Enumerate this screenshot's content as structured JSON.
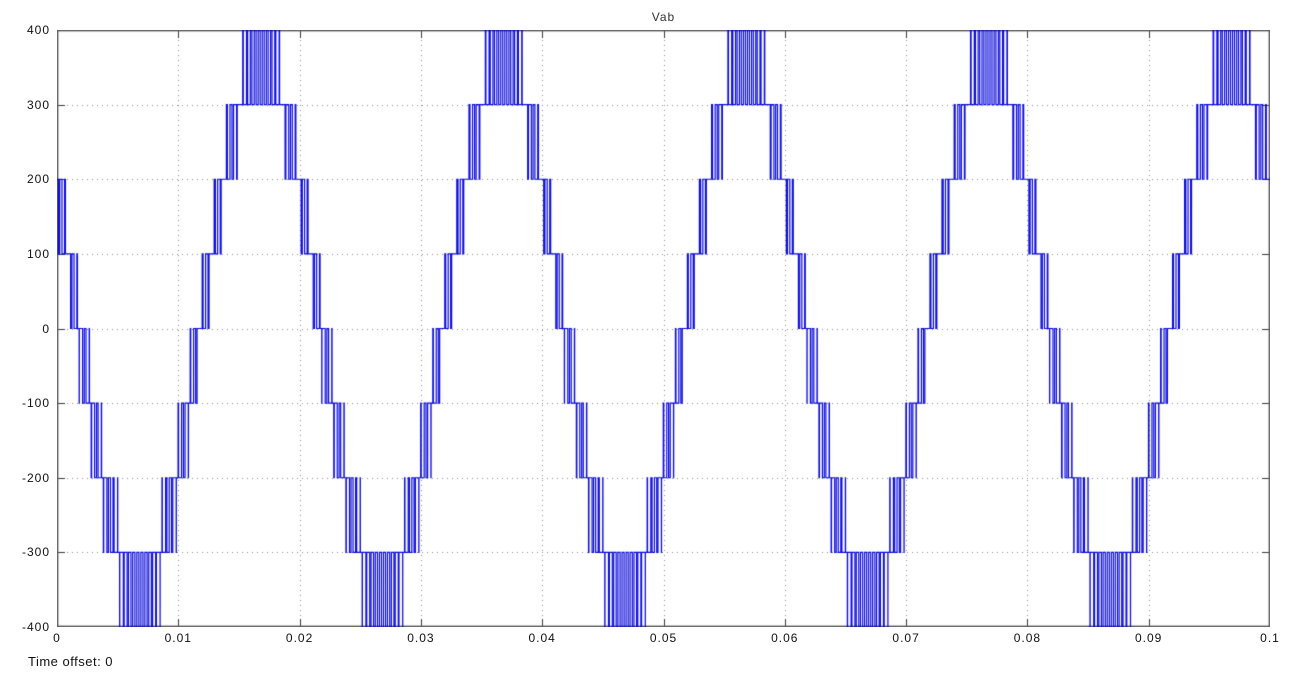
{
  "scope": {
    "time_offset_label": "Time offset: 0"
  },
  "colors": {
    "waveform": "#0b0bdc",
    "grid": "#909090",
    "axis_box": "#606060",
    "tick": "#3a3a3a",
    "text": "#111111",
    "background": "#ffffff"
  },
  "chart_data": {
    "type": "line",
    "title": "Vab",
    "xlabel": "",
    "ylabel": "",
    "xlim": [
      0,
      0.1
    ],
    "ylim": [
      -400,
      400
    ],
    "grid": true,
    "grid_style": "dotted",
    "legend": "none",
    "x_tick_values": [
      0,
      0.01,
      0.02,
      0.03,
      0.04,
      0.05,
      0.06,
      0.07,
      0.08,
      0.09,
      0.1
    ],
    "x_tick_labels": [
      "0",
      "0.01",
      "0.02",
      "0.03",
      "0.04",
      "0.05",
      "0.06",
      "0.07",
      "0.08",
      "0.09",
      "0.1"
    ],
    "y_tick_values": [
      -400,
      -300,
      -200,
      -100,
      0,
      100,
      200,
      300,
      400
    ],
    "y_tick_labels": [
      "-400",
      "-300",
      "-200",
      "-100",
      "0",
      "100",
      "200",
      "300",
      "400"
    ],
    "series": [
      {
        "name": "Vab",
        "kind": "multilevel_pwm",
        "description": "9-level inverter line-to-line voltage: staircase with level-shifted (phase-disposition) PWM switching between adjacent 100 V levels; dense 300-400 V bursts at each crest and -300 to -400 V bursts at each trough",
        "level_step_volts": 100,
        "num_levels": 9,
        "levels_volts": [
          -400,
          -300,
          -200,
          -100,
          0,
          100,
          200,
          300,
          400
        ],
        "amplitude_volts": 350,
        "fundamental_hz": 50,
        "period_s": 0.02,
        "cycles_visible": 5,
        "phase_rad": 2.576,
        "carrier_hz": 3000,
        "t_start": 0,
        "t_end": 0.1,
        "value_at_t0_volts": 190,
        "first_trough_center_s": 0.0068,
        "first_crest_center_s": 0.0168
      }
    ]
  }
}
